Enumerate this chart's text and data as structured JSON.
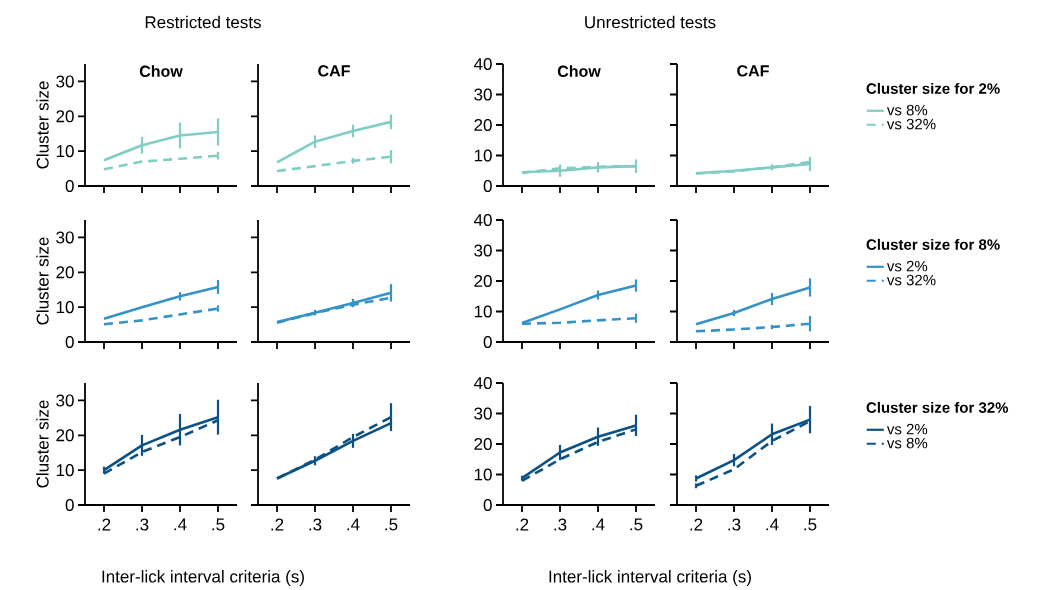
{
  "chart_data": [
    {
      "type": "line",
      "title": "Chow",
      "subtitle": "Restricted tests",
      "ylabel": "Cluster size",
      "x": [
        0.2,
        0.3,
        0.4,
        0.5
      ],
      "xlim": [
        0.15,
        0.55
      ],
      "xticks": [
        {
          "value": 0.2,
          "label": null
        },
        {
          "value": 0.3,
          "label": null
        },
        {
          "value": 0.4,
          "label": null
        },
        {
          "value": 0.5,
          "label": null
        }
      ],
      "ylim": [
        0,
        35
      ],
      "yticks": [
        0,
        10,
        20,
        30
      ],
      "tick_labels": "y",
      "series": [
        {
          "color": "#7fcdc4",
          "line_style": "solid",
          "values": [
            7.4,
            11.7,
            14.5,
            15.5
          ],
          "errors": [
            null,
            2.4,
            3.7,
            3.9
          ]
        },
        {
          "color": "#7fcdc4",
          "line_style": "dashed",
          "values": [
            4.8,
            7.0,
            7.8,
            8.7
          ],
          "errors": [
            null,
            null,
            null,
            1.1
          ]
        }
      ]
    },
    {
      "type": "line",
      "title": "CAF",
      "x": [
        0.2,
        0.3,
        0.4,
        0.5
      ],
      "xlim": [
        0.15,
        0.55
      ],
      "xticks": [
        {
          "value": 0.2,
          "label": null
        },
        {
          "value": 0.3,
          "label": null
        },
        {
          "value": 0.4,
          "label": null
        },
        {
          "value": 0.5,
          "label": null
        }
      ],
      "ylim": [
        0,
        35
      ],
      "yticks": [
        {
          "value": 0,
          "label": null
        },
        {
          "value": 10,
          "label": null
        },
        {
          "value": 20,
          "label": null
        },
        {
          "value": 30,
          "label": null
        }
      ],
      "tick_labels": false,
      "series": [
        {
          "color": "#7fcdc4",
          "line_style": "solid",
          "values": [
            6.8,
            12.7,
            15.8,
            18.4
          ],
          "errors": [
            null,
            1.8,
            1.8,
            2.1
          ]
        },
        {
          "color": "#7fcdc4",
          "line_style": "dashed",
          "values": [
            4.3,
            5.7,
            7.2,
            8.4
          ],
          "errors": [
            null,
            null,
            0.8,
            1.9
          ]
        }
      ]
    },
    {
      "type": "line",
      "title": "Chow",
      "subtitle": "Unrestricted tests",
      "x": [
        0.2,
        0.3,
        0.4,
        0.5
      ],
      "xlim": [
        0.15,
        0.55
      ],
      "xticks": [
        {
          "value": 0.2,
          "label": null
        },
        {
          "value": 0.3,
          "label": null
        },
        {
          "value": 0.4,
          "label": null
        },
        {
          "value": 0.5,
          "label": null
        }
      ],
      "ylim": [
        0,
        40
      ],
      "yticks": [
        0,
        10,
        20,
        30,
        40
      ],
      "tick_labels": "y",
      "series": [
        {
          "color": "#7fcdc4",
          "line_style": "solid",
          "values": [
            4.5,
            5.0,
            6.1,
            6.5
          ],
          "errors": [
            null,
            2.0,
            1.7,
            2.2
          ]
        },
        {
          "color": "#7fcdc4",
          "line_style": "dashed",
          "values": [
            4.3,
            5.8,
            6.3,
            6.5
          ],
          "errors": [
            null,
            null,
            null,
            null
          ]
        }
      ]
    },
    {
      "type": "line",
      "title": "CAF",
      "legend": "right",
      "legend_title": "Cluster size for 2%",
      "x": [
        0.2,
        0.3,
        0.4,
        0.5
      ],
      "xlim": [
        0.15,
        0.55
      ],
      "xticks": [
        {
          "value": 0.2,
          "label": null
        },
        {
          "value": 0.3,
          "label": null
        },
        {
          "value": 0.4,
          "label": null
        },
        {
          "value": 0.5,
          "label": null
        }
      ],
      "ylim": [
        0,
        40
      ],
      "yticks": [
        {
          "value": 0,
          "label": null
        },
        {
          "value": 10,
          "label": null
        },
        {
          "value": 20,
          "label": null
        },
        {
          "value": 30,
          "label": null
        },
        {
          "value": 40,
          "label": null
        }
      ],
      "tick_labels": false,
      "series": [
        {
          "name": "vs 8%",
          "color": "#7fcdc4",
          "line_style": "solid",
          "values": [
            4.2,
            5.0,
            6.1,
            7.2
          ],
          "errors": [
            null,
            null,
            1.0,
            2.3
          ]
        },
        {
          "name": "vs 32%",
          "color": "#7fcdc4",
          "line_style": "dashed",
          "values": [
            4.1,
            4.8,
            6.1,
            7.9
          ],
          "errors": [
            null,
            null,
            null,
            null
          ]
        }
      ]
    },
    {
      "type": "line",
      "ylabel": "Cluster size",
      "x": [
        0.2,
        0.3,
        0.4,
        0.5
      ],
      "xlim": [
        0.15,
        0.55
      ],
      "xticks": [
        {
          "value": 0.2,
          "label": null
        },
        {
          "value": 0.3,
          "label": null
        },
        {
          "value": 0.4,
          "label": null
        },
        {
          "value": 0.5,
          "label": null
        }
      ],
      "ylim": [
        0,
        35
      ],
      "yticks": [
        0,
        10,
        20,
        30
      ],
      "tick_labels": "y",
      "series": [
        {
          "color": "#3492c7",
          "line_style": "solid",
          "values": [
            6.7,
            10.0,
            13.1,
            15.8
          ],
          "errors": [
            null,
            null,
            1.2,
            2.0
          ]
        },
        {
          "color": "#3492c7",
          "line_style": "dashed",
          "values": [
            5.1,
            6.2,
            7.9,
            9.6
          ],
          "errors": [
            null,
            null,
            null,
            0.9
          ]
        }
      ]
    },
    {
      "type": "line",
      "x": [
        0.2,
        0.3,
        0.4,
        0.5
      ],
      "xlim": [
        0.15,
        0.55
      ],
      "xticks": [
        {
          "value": 0.2,
          "label": null
        },
        {
          "value": 0.3,
          "label": null
        },
        {
          "value": 0.4,
          "label": null
        },
        {
          "value": 0.5,
          "label": null
        }
      ],
      "ylim": [
        0,
        35
      ],
      "yticks": [
        {
          "value": 0,
          "label": null
        },
        {
          "value": 10,
          "label": null
        },
        {
          "value": 20,
          "label": null
        },
        {
          "value": 30,
          "label": null
        }
      ],
      "tick_labels": false,
      "series": [
        {
          "color": "#3492c7",
          "line_style": "solid",
          "values": [
            5.7,
            8.4,
            11.2,
            14.1
          ],
          "errors": [
            null,
            0.8,
            1.2,
            2.5
          ]
        },
        {
          "color": "#3492c7",
          "line_style": "dashed",
          "values": [
            5.5,
            8.3,
            10.7,
            12.7
          ],
          "errors": [
            null,
            null,
            null,
            null
          ]
        }
      ]
    },
    {
      "type": "line",
      "x": [
        0.2,
        0.3,
        0.4,
        0.5
      ],
      "xlim": [
        0.15,
        0.55
      ],
      "xticks": [
        {
          "value": 0.2,
          "label": null
        },
        {
          "value": 0.3,
          "label": null
        },
        {
          "value": 0.4,
          "label": null
        },
        {
          "value": 0.5,
          "label": null
        }
      ],
      "ylim": [
        0,
        40
      ],
      "yticks": [
        0,
        10,
        20,
        30,
        40
      ],
      "tick_labels": "y",
      "series": [
        {
          "color": "#3492c7",
          "line_style": "solid",
          "values": [
            6.2,
            10.7,
            15.4,
            18.5
          ],
          "errors": [
            null,
            null,
            1.5,
            2.0
          ]
        },
        {
          "color": "#3492c7",
          "line_style": "dashed",
          "values": [
            6.0,
            6.3,
            7.1,
            7.8
          ],
          "errors": [
            null,
            null,
            null,
            1.5
          ]
        }
      ]
    },
    {
      "type": "line",
      "legend": "right",
      "legend_title": "Cluster size for 8%",
      "x": [
        0.2,
        0.3,
        0.4,
        0.5
      ],
      "xlim": [
        0.15,
        0.55
      ],
      "xticks": [
        {
          "value": 0.2,
          "label": null
        },
        {
          "value": 0.3,
          "label": null
        },
        {
          "value": 0.4,
          "label": null
        },
        {
          "value": 0.5,
          "label": null
        }
      ],
      "ylim": [
        0,
        40
      ],
      "yticks": [
        {
          "value": 0,
          "label": null
        },
        {
          "value": 10,
          "label": null
        },
        {
          "value": 20,
          "label": null
        },
        {
          "value": 30,
          "label": null
        },
        {
          "value": 40,
          "label": null
        }
      ],
      "tick_labels": false,
      "series": [
        {
          "name": "vs 2%",
          "color": "#3492c7",
          "line_style": "solid",
          "values": [
            5.8,
            9.5,
            14.1,
            17.9
          ],
          "errors": [
            null,
            1.0,
            2.0,
            3.0
          ]
        },
        {
          "name": "vs 32%",
          "color": "#3492c7",
          "line_style": "dashed",
          "values": [
            3.5,
            4.1,
            4.9,
            6.0
          ],
          "errors": [
            null,
            null,
            0.7,
            2.5
          ]
        }
      ]
    },
    {
      "type": "line",
      "ylabel": "Cluster size",
      "xlabel": "Inter-lick interval criteria (s)",
      "x": [
        0.2,
        0.3,
        0.4,
        0.5
      ],
      "xlim": [
        0.15,
        0.55
      ],
      "xticks": [
        {
          "value": 0.2,
          "label": ".2"
        },
        {
          "value": 0.3,
          "label": ".3"
        },
        {
          "value": 0.4,
          "label": ".4"
        },
        {
          "value": 0.5,
          "label": ".5"
        }
      ],
      "ylim": [
        0,
        35
      ],
      "yticks": [
        0,
        10,
        20,
        30
      ],
      "series": [
        {
          "color": "#0b5185",
          "line_style": "solid",
          "values": [
            10.0,
            17.1,
            21.6,
            25.2
          ],
          "errors": [
            1.0,
            3.0,
            4.5,
            5.0
          ]
        },
        {
          "color": "#0b5185",
          "line_style": "dashed",
          "values": [
            9.0,
            15.2,
            19.5,
            24.3
          ],
          "errors": [
            null,
            null,
            null,
            null
          ]
        }
      ]
    },
    {
      "type": "line",
      "x": [
        0.2,
        0.3,
        0.4,
        0.5
      ],
      "xlim": [
        0.15,
        0.55
      ],
      "xticks": [
        {
          "value": 0.2,
          "label": ".2"
        },
        {
          "value": 0.3,
          "label": ".3"
        },
        {
          "value": 0.4,
          "label": ".4"
        },
        {
          "value": 0.5,
          "label": ".5"
        }
      ],
      "ylim": [
        0,
        35
      ],
      "yticks": [
        {
          "value": 0,
          "label": null
        },
        {
          "value": 10,
          "label": null
        },
        {
          "value": 20,
          "label": null
        },
        {
          "value": 30,
          "label": null
        }
      ],
      "tick_labels": "x",
      "series": [
        {
          "color": "#0b5185",
          "line_style": "solid",
          "values": [
            7.6,
            12.7,
            18.4,
            23.5
          ],
          "errors": [
            null,
            1.3,
            2.0,
            null
          ]
        },
        {
          "color": "#0b5185",
          "line_style": "dashed",
          "values": [
            7.6,
            13.0,
            19.5,
            25.2
          ],
          "errors": [
            null,
            null,
            null,
            4.0
          ]
        }
      ]
    },
    {
      "type": "line",
      "xlabel": "Inter-lick interval criteria (s)",
      "x": [
        0.2,
        0.3,
        0.4,
        0.5
      ],
      "xlim": [
        0.15,
        0.55
      ],
      "xticks": [
        {
          "value": 0.2,
          "label": ".2"
        },
        {
          "value": 0.3,
          "label": ".3"
        },
        {
          "value": 0.4,
          "label": ".4"
        },
        {
          "value": 0.5,
          "label": ".5"
        }
      ],
      "ylim": [
        0,
        40
      ],
      "yticks": [
        0,
        10,
        20,
        30,
        40
      ],
      "series": [
        {
          "color": "#0b5185",
          "line_style": "solid",
          "values": [
            8.8,
            17.2,
            22.4,
            26.1
          ],
          "errors": [
            0.8,
            2.5,
            3.0,
            3.5
          ]
        },
        {
          "color": "#0b5185",
          "line_style": "dashed",
          "values": [
            7.9,
            15.0,
            20.7,
            24.8
          ],
          "errors": [
            null,
            null,
            null,
            null
          ]
        }
      ]
    },
    {
      "type": "line",
      "legend": "right",
      "legend_title": "Cluster size for 32%",
      "x": [
        0.2,
        0.3,
        0.4,
        0.5
      ],
      "xlim": [
        0.15,
        0.55
      ],
      "xticks": [
        {
          "value": 0.2,
          "label": ".2"
        },
        {
          "value": 0.3,
          "label": ".3"
        },
        {
          "value": 0.4,
          "label": ".4"
        },
        {
          "value": 0.5,
          "label": ".5"
        }
      ],
      "ylim": [
        0,
        40
      ],
      "yticks": [
        {
          "value": 0,
          "label": null
        },
        {
          "value": 10,
          "label": null
        },
        {
          "value": 20,
          "label": null
        },
        {
          "value": 30,
          "label": null
        },
        {
          "value": 40,
          "label": null
        }
      ],
      "tick_labels": "x",
      "series": [
        {
          "name": "vs 2%",
          "color": "#0b5185",
          "line_style": "solid",
          "values": [
            8.7,
            14.7,
            23.2,
            28.0
          ],
          "errors": [
            1.0,
            2.0,
            3.5,
            4.5
          ]
        },
        {
          "name": "vs 8%",
          "color": "#0b5185",
          "line_style": "dashed",
          "values": [
            6.3,
            11.7,
            21.0,
            27.5
          ],
          "errors": [
            0.8,
            null,
            null,
            null
          ]
        }
      ]
    }
  ]
}
